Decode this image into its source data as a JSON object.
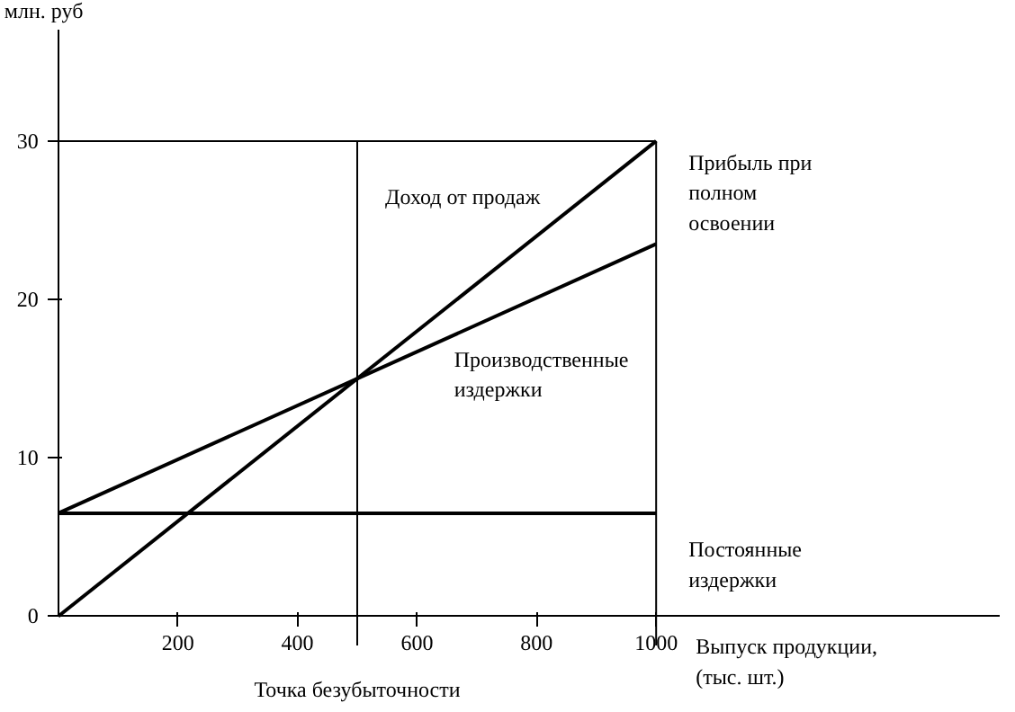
{
  "chart_data": {
    "type": "line",
    "xlabel": "Выпуск продукции, (тыс. шт.)",
    "ylabel": "млн. руб",
    "xlim": [
      0,
      1575
    ],
    "ylim": [
      0,
      37
    ],
    "xticks": [
      200,
      400,
      600,
      800,
      1000
    ],
    "yticks": [
      0,
      10,
      20,
      30
    ],
    "x": [
      0,
      1000
    ],
    "series": [
      {
        "color": "#000000",
        "values": [
          0,
          30
        ]
      },
      {
        "color": "#000000",
        "values": [
          6.5,
          23.5
        ]
      },
      {
        "color": "#000000",
        "values": [
          6.5,
          6.5
        ]
      }
    ],
    "ref_lines": [
      {
        "axis": "x",
        "value": 500,
        "label": "Точка безубыточности"
      },
      {
        "axis": "x",
        "value": 1000,
        "label": null
      },
      {
        "axis": "y",
        "value": 30,
        "label": null
      }
    ],
    "annotations": [
      {
        "text": "Доход от продаж",
        "x": 830,
        "y": 25
      },
      {
        "text": "Производственные издержки",
        "x": 650,
        "y": 17.7
      },
      {
        "text": "Прибыль при полном освоении",
        "x": 1000,
        "y": 26.75
      },
      {
        "text": "Постоянные издержки",
        "x": 1000,
        "y": 3.25
      }
    ],
    "marker": "none",
    "line_style": "solid"
  }
}
